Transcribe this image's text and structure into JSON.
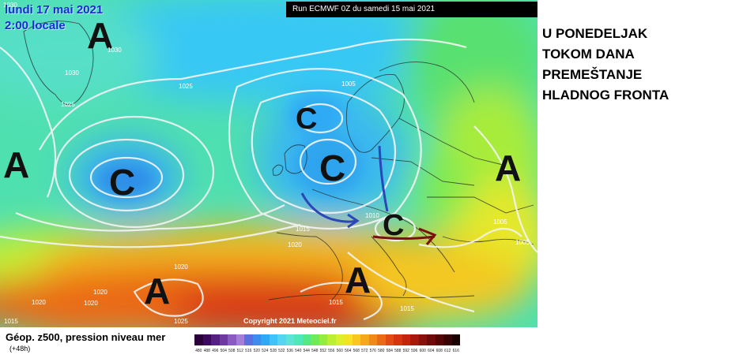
{
  "map": {
    "date_line1": "lundi 17 mai 2021",
    "date_line2": "2:00 locale",
    "run_info": "Run ECMWF 0Z du samedi 15 mai 2021",
    "copyright": "Copyright 2021 Meteociel.fr",
    "high_symbol": "A",
    "low_symbol": "C",
    "isobar_labels": [
      "1030",
      "1030",
      "1030",
      "1025",
      "1025",
      "1005",
      "1010",
      "1015",
      "1020",
      "1020",
      "1020",
      "1020",
      "1025",
      "1015",
      "1015",
      "1015",
      "1020",
      "1005",
      "1005"
    ]
  },
  "headline": {
    "lines": [
      "U PONEDELJAK",
      "TOKOM DANA",
      "PREMEŠTANJE",
      "HLADNOG FRONTA"
    ]
  },
  "legend": {
    "title": "Géop. z500, pression niveau mer",
    "subtitle": "(+48h)",
    "scale_values": [
      "480",
      "488",
      "496",
      "504",
      "508",
      "512",
      "516",
      "520",
      "524",
      "528",
      "532",
      "536",
      "540",
      "544",
      "548",
      "552",
      "556",
      "560",
      "564",
      "568",
      "572",
      "576",
      "580",
      "584",
      "588",
      "592",
      "596",
      "600",
      "604",
      "608",
      "612",
      "616"
    ],
    "scale_colors": [
      "#2a003a",
      "#3c0a5c",
      "#55207e",
      "#6e3aa0",
      "#8a5cc0",
      "#a47ed8",
      "#5a6fe0",
      "#3f8cf0",
      "#2fa9f5",
      "#3ec4f8",
      "#55d6f0",
      "#5ce4d8",
      "#4fe8b8",
      "#53e88a",
      "#6fea5a",
      "#95ec3e",
      "#bcee32",
      "#ddee2a",
      "#f4e226",
      "#f8c820",
      "#f6a81c",
      "#f28818",
      "#ec6a16",
      "#e24c14",
      "#d63412",
      "#c42410",
      "#a8180e",
      "#8a100c",
      "#6e0a0a",
      "#520606",
      "#360404",
      "#1a0000"
    ]
  }
}
